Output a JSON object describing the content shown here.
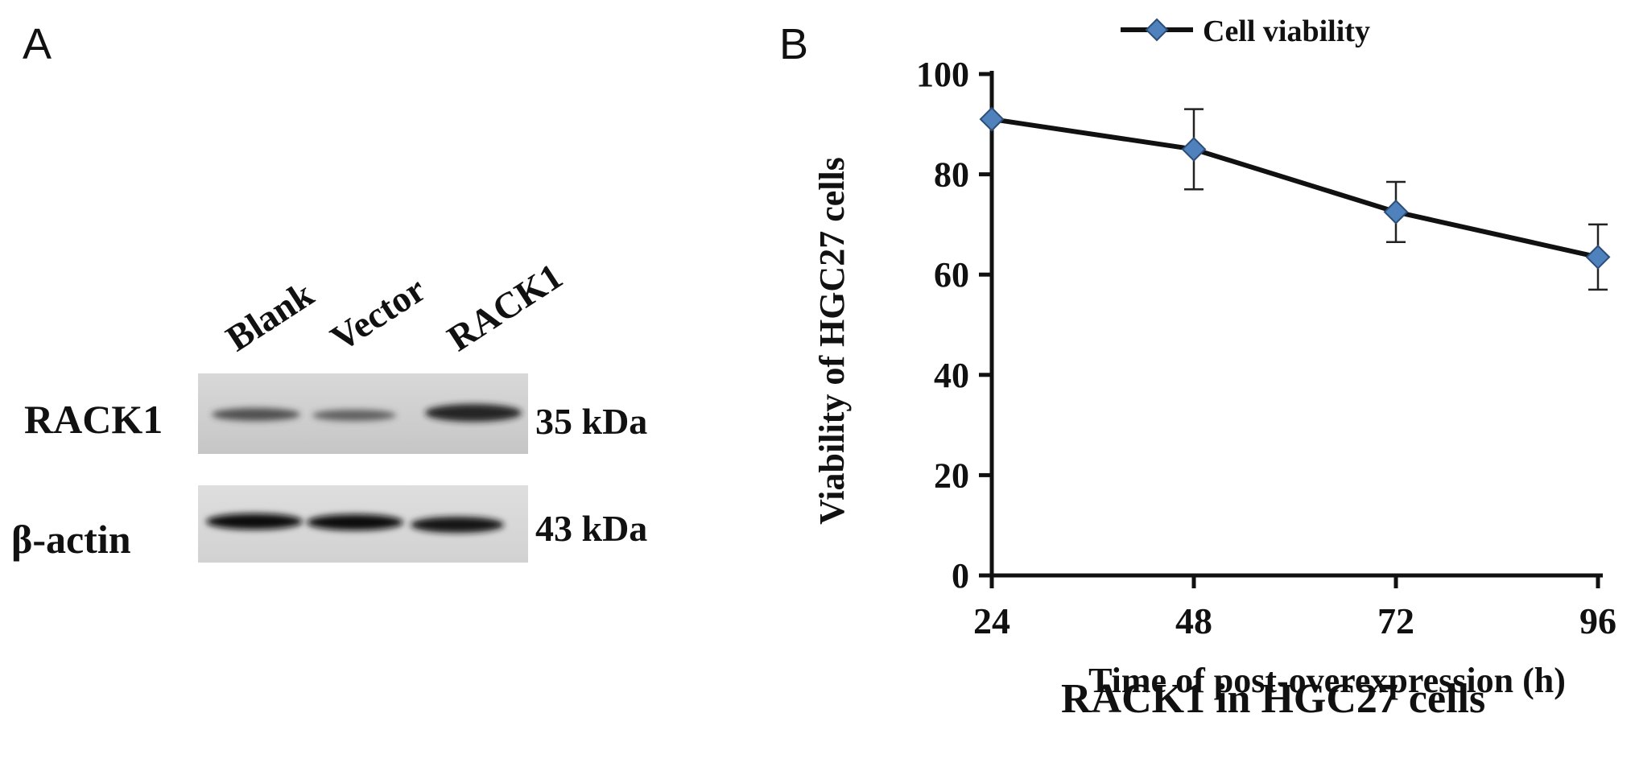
{
  "panel_a": {
    "letter": "A",
    "lanes": [
      "Blank",
      "Vector",
      "RACK1"
    ],
    "rows": [
      {
        "protein": "RACK1",
        "size": "35 kDa"
      },
      {
        "protein": "β-actin",
        "size": "43 kDa"
      }
    ]
  },
  "panel_b": {
    "letter": "B",
    "caption": "RACK1 in HGC27 cells"
  },
  "chart_data": {
    "type": "line",
    "xlabel": "Time of post-overexpression (h)",
    "ylabel": "Viability of HGC27 cells",
    "x": [
      24,
      48,
      72,
      96
    ],
    "xlim": [
      24,
      96
    ],
    "ylim": [
      0,
      100
    ],
    "yticks": [
      0,
      20,
      40,
      60,
      80,
      100
    ],
    "legend_position": "top",
    "series": [
      {
        "name": "Cell viability",
        "values": [
          91,
          85,
          72.5,
          63.5
        ],
        "errors": [
          0,
          8,
          6,
          6.5
        ],
        "line_color": "#111111",
        "marker_color": "#4f81bd"
      }
    ]
  }
}
